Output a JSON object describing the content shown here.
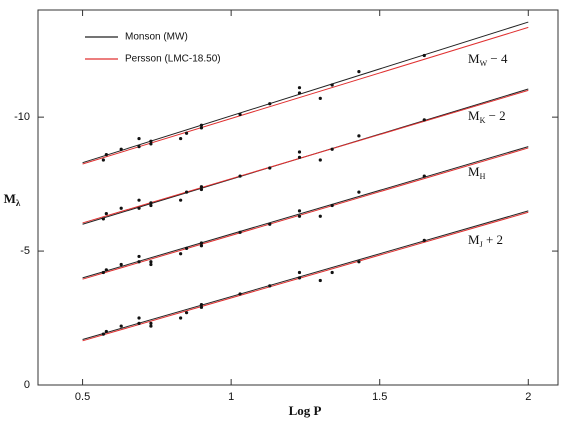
{
  "chart_data": {
    "type": "scatter",
    "x_label": "Log P",
    "y_label": "M",
    "y_label_sub": "λ",
    "xlim": [
      0.35,
      2.1
    ],
    "ylim": [
      0,
      -14
    ],
    "xticks": [
      0.5,
      1,
      1.5,
      2
    ],
    "yticks": [
      0,
      -5,
      -10
    ],
    "legend": "top-left",
    "series": [
      {
        "name": "Monson (MW)",
        "color": "#222222",
        "x": [
          0.5,
          2
        ],
        "lines": [
          [
            -8.3,
            -13.55
          ],
          [
            -6.0,
            -11.05
          ],
          [
            -4.0,
            -8.9
          ],
          [
            -1.7,
            -6.5
          ]
        ]
      },
      {
        "name": "Persson (LMC-18.50)",
        "color": "#e03030",
        "x": [
          0.5,
          2
        ],
        "lines": [
          [
            -8.25,
            -13.35
          ],
          [
            -6.05,
            -11.0
          ],
          [
            -3.95,
            -8.85
          ],
          [
            -1.65,
            -6.45
          ]
        ]
      }
    ],
    "point_color": "#111111",
    "point_x": [
      0.57,
      0.58,
      0.63,
      0.69,
      0.69,
      0.73,
      0.73,
      0.83,
      0.85,
      0.9,
      0.9,
      1.03,
      1.13,
      1.23,
      1.23,
      1.3,
      1.34,
      1.43,
      1.65
    ],
    "bands": [
      {
        "label": "M",
        "label_sub": "W",
        "label_suffix": " − 4",
        "values": [
          -8.4,
          -8.6,
          -8.8,
          -9.2,
          -8.9,
          -9.0,
          -9.1,
          -9.2,
          -9.4,
          -9.6,
          -9.7,
          -10.1,
          -10.5,
          -10.9,
          -11.1,
          -10.7,
          -11.2,
          -11.7,
          -12.3
        ]
      },
      {
        "label": "M",
        "label_sub": "K",
        "label_suffix": " − 2",
        "values": [
          -6.2,
          -6.4,
          -6.6,
          -6.9,
          -6.6,
          -6.7,
          -6.8,
          -6.9,
          -7.2,
          -7.4,
          -7.3,
          -7.8,
          -8.1,
          -8.7,
          -8.5,
          -8.4,
          -8.8,
          -9.3,
          -9.9
        ]
      },
      {
        "label": "M",
        "label_sub": "H",
        "values": [
          -4.2,
          -4.3,
          -4.5,
          -4.8,
          -4.6,
          -4.6,
          -4.5,
          -4.9,
          -5.1,
          -5.3,
          -5.2,
          -5.7,
          -6.0,
          -6.5,
          -6.3,
          -6.3,
          -6.7,
          -7.2,
          -7.8
        ]
      },
      {
        "label": "M",
        "label_sub": "J",
        "label_suffix": " + 2",
        "values": [
          -1.9,
          -2.0,
          -2.2,
          -2.5,
          -2.3,
          -2.2,
          -2.3,
          -2.5,
          -2.7,
          -3.0,
          -2.9,
          -3.4,
          -3.7,
          -4.2,
          -4.0,
          -3.9,
          -4.2,
          -4.6,
          -5.4
        ]
      }
    ]
  }
}
